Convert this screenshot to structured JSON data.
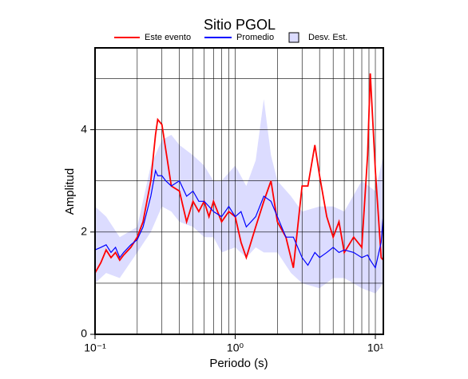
{
  "chart_data": {
    "type": "line",
    "title": "Sitio PGOL",
    "xlabel": "Periodo (s)",
    "ylabel": "Amplitud",
    "log_x": true,
    "grid": true,
    "xlim": [
      0.1,
      11.4
    ],
    "ylim": [
      0,
      5.6
    ],
    "xticks": [
      {
        "value": 0.1,
        "label": "10⁻¹"
      },
      {
        "value": 1,
        "label": "10⁰"
      },
      {
        "value": 10,
        "label": "10¹"
      }
    ],
    "xminor": [
      0.2,
      0.3,
      0.4,
      0.5,
      0.6,
      0.7,
      0.8,
      0.9,
      2,
      3,
      4,
      5,
      6,
      7,
      8,
      9
    ],
    "yticks": [
      0,
      2,
      4
    ],
    "yminor": [
      1,
      3,
      5
    ],
    "x": [
      0.1,
      0.11,
      0.12,
      0.13,
      0.14,
      0.15,
      0.16,
      0.18,
      0.2,
      0.22,
      0.25,
      0.27,
      0.28,
      0.3,
      0.32,
      0.35,
      0.4,
      0.45,
      0.5,
      0.55,
      0.6,
      0.65,
      0.7,
      0.8,
      0.9,
      1.0,
      1.1,
      1.2,
      1.4,
      1.6,
      1.8,
      2.0,
      2.3,
      2.6,
      3.0,
      3.3,
      3.7,
      4.0,
      4.5,
      5,
      5.5,
      6,
      7,
      8,
      8.8,
      9.2,
      10,
      11,
      11.4
    ],
    "series": [
      {
        "name": "Este evento",
        "color": "#ff0000",
        "values": [
          1.2,
          1.4,
          1.65,
          1.5,
          1.6,
          1.45,
          1.55,
          1.7,
          1.9,
          2.2,
          3.0,
          3.9,
          4.2,
          4.1,
          3.6,
          2.9,
          2.8,
          2.2,
          2.6,
          2.4,
          2.6,
          2.3,
          2.6,
          2.2,
          2.4,
          2.3,
          1.8,
          1.5,
          2.1,
          2.6,
          3.0,
          2.2,
          1.9,
          1.3,
          2.9,
          2.9,
          3.7,
          3.1,
          2.3,
          1.9,
          2.2,
          1.6,
          1.9,
          1.7,
          3.5,
          5.1,
          3.2,
          1.5,
          1.45
        ]
      },
      {
        "name": "Promedio",
        "color": "#0000ff",
        "values": [
          1.65,
          1.7,
          1.75,
          1.6,
          1.7,
          1.5,
          1.6,
          1.75,
          1.85,
          2.1,
          2.7,
          3.2,
          3.1,
          3.1,
          3.0,
          2.9,
          3.0,
          2.7,
          2.8,
          2.6,
          2.6,
          2.5,
          2.4,
          2.3,
          2.5,
          2.3,
          2.4,
          2.1,
          2.3,
          2.7,
          2.6,
          2.3,
          1.9,
          1.9,
          1.5,
          1.35,
          1.6,
          1.5,
          1.6,
          1.7,
          1.6,
          1.65,
          1.6,
          1.5,
          1.55,
          1.45,
          1.3,
          1.8,
          2.35
        ]
      }
    ],
    "band": {
      "name": "Desv. Est.",
      "color": "#dcdcff",
      "x": [
        0.1,
        0.12,
        0.15,
        0.2,
        0.25,
        0.3,
        0.35,
        0.4,
        0.5,
        0.6,
        0.7,
        0.8,
        1.0,
        1.2,
        1.4,
        1.6,
        1.8,
        2.0,
        2.5,
        3,
        4,
        5,
        6,
        8,
        10,
        11.4
      ],
      "lower": [
        1.0,
        1.2,
        1.1,
        1.6,
        2.0,
        2.5,
        2.4,
        2.2,
        2.1,
        1.9,
        1.9,
        1.6,
        1.7,
        1.5,
        1.7,
        1.6,
        1.6,
        1.6,
        1.2,
        1.0,
        0.9,
        1.1,
        1.1,
        0.9,
        0.8,
        1.0
      ],
      "upper": [
        2.5,
        2.3,
        1.9,
        2.1,
        3.3,
        3.8,
        3.9,
        3.7,
        3.5,
        3.3,
        3.0,
        3.0,
        3.3,
        2.9,
        3.4,
        4.6,
        3.5,
        3.0,
        2.7,
        2.4,
        2.5,
        2.5,
        2.4,
        3.0,
        2.8,
        3.5
      ]
    }
  }
}
